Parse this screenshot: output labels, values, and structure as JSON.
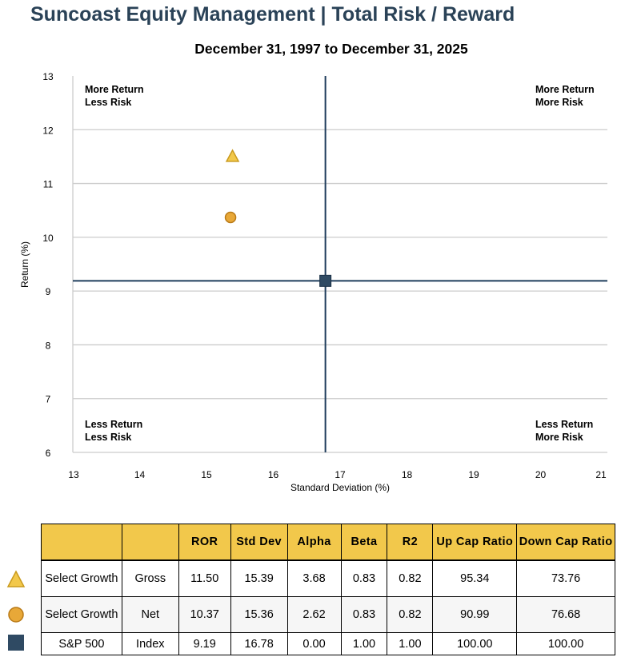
{
  "title": "Suncoast Equity Management | Total Risk / Reward",
  "subtitle": "December 31, 1997 to December 31, 2025",
  "chart_data": {
    "type": "scatter",
    "xlabel": "Standard Deviation (%)",
    "ylabel": "Return (%)",
    "xlim": [
      13,
      21
    ],
    "ylim": [
      6,
      13
    ],
    "x_ticks": [
      13,
      14,
      15,
      16,
      17,
      18,
      19,
      20,
      21
    ],
    "y_ticks": [
      6,
      7,
      8,
      9,
      10,
      11,
      12,
      13
    ],
    "grid": "horizontal",
    "crosshair": {
      "x": 16.78,
      "y": 9.19
    },
    "quadrant_labels": {
      "top_left": [
        "More Return",
        "Less Risk"
      ],
      "top_right": [
        "More Return",
        "More Risk"
      ],
      "bottom_left": [
        "Less Return",
        "Less Risk"
      ],
      "bottom_right": [
        "Less Return",
        "More Risk"
      ]
    },
    "points": [
      {
        "name": "Select Growth Gross",
        "x": 15.39,
        "y": 11.5,
        "marker": "triangle",
        "color": "#f2c84b"
      },
      {
        "name": "Select Growth Net",
        "x": 15.36,
        "y": 10.37,
        "marker": "circle",
        "color": "#e8a838"
      },
      {
        "name": "S&P 500 Index",
        "x": 16.78,
        "y": 9.19,
        "marker": "square",
        "color": "#2f4a63"
      }
    ]
  },
  "table": {
    "headers": [
      "ROR",
      "Std Dev",
      "Alpha",
      "Beta",
      "R2",
      "Up Cap Ratio",
      "Down Cap Ratio"
    ],
    "rows": [
      {
        "name": "Select Growth",
        "type": "Gross",
        "values": [
          "11.50",
          "15.39",
          "3.68",
          "0.83",
          "0.82",
          "95.34",
          "73.76"
        ]
      },
      {
        "name": "Select Growth",
        "type": "Net",
        "values": [
          "10.37",
          "15.36",
          "2.62",
          "0.83",
          "0.82",
          "90.99",
          "76.68"
        ]
      },
      {
        "name": "S&P 500",
        "type": "Index",
        "values": [
          "9.19",
          "16.78",
          "0.00",
          "1.00",
          "1.00",
          "100.00",
          "100.00"
        ]
      }
    ]
  },
  "colors": {
    "title": "#2a4257",
    "header_bg": "#f2c84b",
    "crosshair": "#1f3d5c",
    "grid": "#cccccc"
  }
}
